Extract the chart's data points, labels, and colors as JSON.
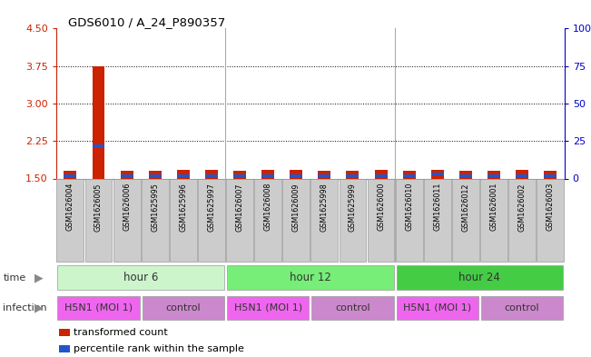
{
  "title": "GDS6010 / A_24_P890357",
  "samples": [
    "GSM1626004",
    "GSM1626005",
    "GSM1626006",
    "GSM1625995",
    "GSM1625996",
    "GSM1625997",
    "GSM1626007",
    "GSM1626008",
    "GSM1626009",
    "GSM1625998",
    "GSM1625999",
    "GSM1626000",
    "GSM1626010",
    "GSM1626011",
    "GSM1626012",
    "GSM1626001",
    "GSM1626002",
    "GSM1626003"
  ],
  "transformed_counts": [
    1.65,
    3.75,
    1.65,
    1.65,
    1.68,
    1.68,
    1.65,
    1.68,
    1.68,
    1.65,
    1.65,
    1.68,
    1.65,
    1.68,
    1.65,
    1.65,
    1.68,
    1.65
  ],
  "percentile_ranks": [
    2,
    22,
    2,
    2,
    2,
    2,
    2,
    2,
    2,
    2,
    2,
    2,
    2,
    3,
    2,
    2,
    2,
    2
  ],
  "ylim_left": [
    1.5,
    4.5
  ],
  "ylim_right": [
    0,
    100
  ],
  "yticks_left": [
    1.5,
    2.25,
    3.0,
    3.75,
    4.5
  ],
  "yticks_right": [
    0,
    25,
    50,
    75,
    100
  ],
  "time_groups": [
    {
      "label": "hour 6",
      "start": 0,
      "end": 6,
      "color": "#ccf5cc"
    },
    {
      "label": "hour 12",
      "start": 6,
      "end": 12,
      "color": "#77ee77"
    },
    {
      "label": "hour 24",
      "start": 12,
      "end": 18,
      "color": "#44cc44"
    }
  ],
  "infection_groups": [
    {
      "label": "H5N1 (MOI 1)",
      "start": 0,
      "end": 3,
      "color": "#ee66ee"
    },
    {
      "label": "control",
      "start": 3,
      "end": 6,
      "color": "#cc88cc"
    },
    {
      "label": "H5N1 (MOI 1)",
      "start": 6,
      "end": 9,
      "color": "#ee66ee"
    },
    {
      "label": "control",
      "start": 9,
      "end": 12,
      "color": "#cc88cc"
    },
    {
      "label": "H5N1 (MOI 1)",
      "start": 12,
      "end": 15,
      "color": "#ee66ee"
    },
    {
      "label": "control",
      "start": 15,
      "end": 18,
      "color": "#cc88cc"
    }
  ],
  "bar_color": "#cc2200",
  "blue_color": "#2255cc",
  "bar_width": 0.45,
  "grid_color": "#000000",
  "left_axis_color": "#cc2200",
  "right_axis_color": "#0000cc",
  "sample_box_color": "#cccccc",
  "separator_color": "#888888"
}
